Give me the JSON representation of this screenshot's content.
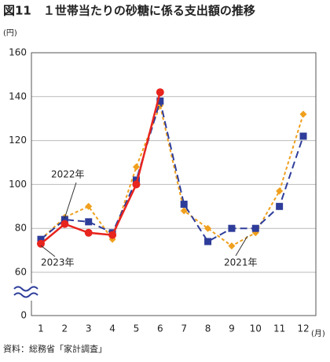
{
  "chart_data": {
    "type": "line",
    "title": "図11　１世帯当たりの砂糖に係る支出額の推移",
    "y_unit": "(円)",
    "x_unit": "(月)",
    "source": "資料：総務省「家計調査」",
    "categories": [
      "1",
      "2",
      "3",
      "4",
      "5",
      "6",
      "7",
      "8",
      "9",
      "10",
      "11",
      "12"
    ],
    "series": [
      {
        "name": "2021年",
        "color": "#f0a01e",
        "dash": "4,3",
        "marker": "diamond",
        "values": [
          75,
          85,
          90,
          75,
          108,
          136,
          88,
          80,
          72,
          78,
          97,
          132
        ]
      },
      {
        "name": "2022年",
        "color": "#2e3d9a",
        "dash": "9,5",
        "marker": "square",
        "values": [
          75,
          84,
          83,
          78,
          102,
          138,
          91,
          74,
          80,
          80,
          90,
          122
        ]
      },
      {
        "name": "2023年",
        "color": "#e8241e",
        "dash": "",
        "marker": "circle",
        "values": [
          73,
          82,
          78,
          77,
          100,
          142,
          null,
          null,
          null,
          null,
          null,
          null
        ]
      }
    ],
    "ylim": [
      0,
      160
    ],
    "axis_break": [
      0,
      60
    ],
    "yticks": [
      0,
      60,
      80,
      100,
      120,
      140,
      160
    ],
    "grid": true
  }
}
